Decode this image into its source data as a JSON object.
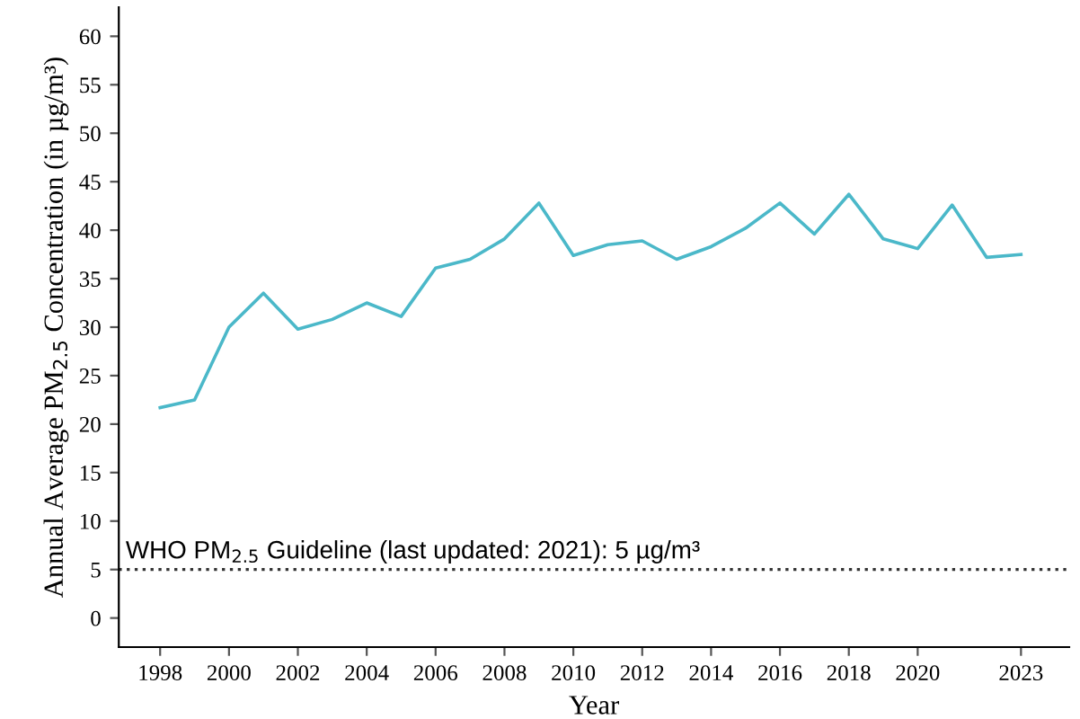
{
  "chart_data": {
    "type": "line",
    "xlabel": "Year",
    "ylabel": "Annual Average PM$_{2.5}$ Concentration (in µg/m³)",
    "x": [
      1998,
      1999,
      2000,
      2001,
      2002,
      2003,
      2004,
      2005,
      2006,
      2007,
      2008,
      2009,
      2010,
      2011,
      2012,
      2013,
      2014,
      2015,
      2016,
      2017,
      2018,
      2019,
      2020,
      2021,
      2022,
      2023
    ],
    "series": [
      {
        "color": "#4bb8c9",
        "values": [
          21.7,
          22.5,
          30.0,
          33.5,
          29.8,
          30.8,
          32.5,
          31.1,
          36.1,
          37.0,
          39.1,
          42.8,
          37.4,
          38.5,
          38.9,
          37.0,
          38.3,
          40.2,
          42.8,
          39.6,
          43.7,
          39.1,
          38.1,
          42.6,
          37.2,
          37.5
        ]
      }
    ],
    "xlim": [
      1996.8,
      2024.4
    ],
    "xticks": [
      1998,
      2000,
      2002,
      2004,
      2006,
      2008,
      2010,
      2012,
      2014,
      2016,
      2018,
      2020,
      2023
    ],
    "ylim": [
      -3,
      63
    ],
    "yticks": [
      0,
      5,
      10,
      15,
      20,
      25,
      30,
      35,
      40,
      45,
      50,
      55,
      60
    ],
    "ref_lines": [
      {
        "axis": "y",
        "value": 5,
        "label": "WHO PM$_{2.5}$ Guideline (last updated: 2021): 5 µg/m³",
        "color": "#333333",
        "line_style": "dotted"
      }
    ],
    "grid": false,
    "legend": false,
    "marker": "none",
    "line_style": "solid"
  }
}
